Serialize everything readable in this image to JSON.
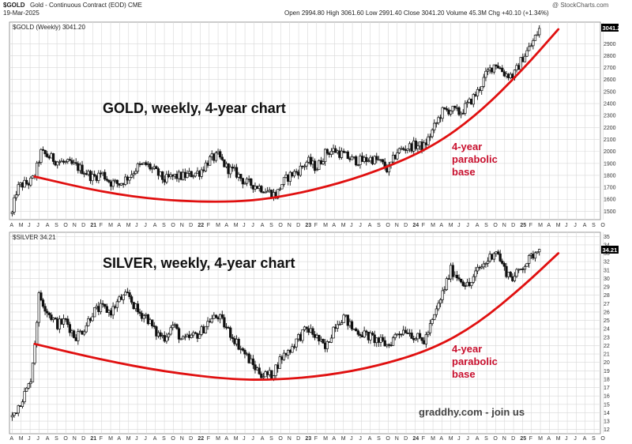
{
  "header": {
    "symbol": "$GOLD",
    "description": "Gold - Continuous Contract (EOD) CME",
    "date": "19-Mar-2025",
    "open_label": "Open",
    "open": "2994.80",
    "high_label": "High",
    "high": "3061.60",
    "low_label": "Low",
    "low": "2991.40",
    "close_label": "Close",
    "close": "3041.20",
    "volume_label": "Volume",
    "volume": "45.3M",
    "chg_label": "Chg",
    "chg": "+40.10 (+1.34%)",
    "brand": "@ StockCharts.com"
  },
  "colors": {
    "candle": "#111111",
    "curve": "#e01010",
    "annotation": "#c8102e",
    "grid": "#d8d8d8"
  },
  "chart_data": [
    {
      "type": "candlestick",
      "legend": "$GOLD (Weekly) 3041.20",
      "title": "GOLD, weekly, 4-year chart",
      "last_value": "3041.20",
      "annotation": [
        "4-year",
        "parabolic",
        "base"
      ],
      "y_ticks": [
        1500,
        1600,
        1700,
        1800,
        1900,
        2000,
        2100,
        2200,
        2300,
        2400,
        2500,
        2600,
        2700,
        2800,
        2900
      ],
      "ylim": [
        1430,
        3080
      ],
      "x_ticks": [
        "A",
        "M",
        "J",
        "J",
        "A",
        "S",
        "O",
        "N",
        "D",
        "21",
        "F",
        "M",
        "A",
        "M",
        "J",
        "J",
        "A",
        "S",
        "O",
        "N",
        "D",
        "22",
        "F",
        "M",
        "A",
        "M",
        "J",
        "J",
        "A",
        "S",
        "O",
        "N",
        "D",
        "23",
        "F",
        "M",
        "A",
        "M",
        "J",
        "J",
        "A",
        "S",
        "O",
        "N",
        "D",
        "24",
        "F",
        "M",
        "A",
        "M",
        "J",
        "J",
        "A",
        "S",
        "O",
        "N",
        "D",
        "25",
        "F",
        "M",
        "A",
        "M",
        "J",
        "J",
        "A",
        "S",
        "O"
      ],
      "x_tick_bold": [
        "21",
        "22",
        "23",
        "24",
        "25"
      ],
      "series_anchors": [
        {
          "month": 0,
          "value": 1480
        },
        {
          "month": 0.5,
          "value": 1680
        },
        {
          "month": 1,
          "value": 1720
        },
        {
          "month": 2,
          "value": 1740
        },
        {
          "month": 2.5,
          "value": 1790
        },
        {
          "month": 3.2,
          "value": 1990
        },
        {
          "month": 4,
          "value": 1960
        },
        {
          "month": 5,
          "value": 1920
        },
        {
          "month": 6,
          "value": 1900
        },
        {
          "month": 7,
          "value": 1880
        },
        {
          "month": 8,
          "value": 1840
        },
        {
          "month": 9,
          "value": 1780
        },
        {
          "month": 10,
          "value": 1820
        },
        {
          "month": 11,
          "value": 1740
        },
        {
          "month": 12,
          "value": 1730
        },
        {
          "month": 13,
          "value": 1790
        },
        {
          "month": 14,
          "value": 1870
        },
        {
          "month": 15,
          "value": 1890
        },
        {
          "month": 16,
          "value": 1830
        },
        {
          "month": 17,
          "value": 1760
        },
        {
          "month": 18,
          "value": 1790
        },
        {
          "month": 19,
          "value": 1790
        },
        {
          "month": 20,
          "value": 1810
        },
        {
          "month": 21,
          "value": 1830
        },
        {
          "month": 22,
          "value": 1930
        },
        {
          "month": 23,
          "value": 1960
        },
        {
          "month": 24,
          "value": 1860
        },
        {
          "month": 25,
          "value": 1820
        },
        {
          "month": 26,
          "value": 1740
        },
        {
          "month": 27,
          "value": 1720
        },
        {
          "month": 28,
          "value": 1690
        },
        {
          "month": 29,
          "value": 1650
        },
        {
          "month": 29.5,
          "value": 1630
        },
        {
          "month": 30,
          "value": 1720
        },
        {
          "month": 31,
          "value": 1800
        },
        {
          "month": 32,
          "value": 1840
        },
        {
          "month": 33,
          "value": 1920
        },
        {
          "month": 34,
          "value": 1860
        },
        {
          "month": 35,
          "value": 1990
        },
        {
          "month": 36,
          "value": 2010
        },
        {
          "month": 37,
          "value": 1970
        },
        {
          "month": 38,
          "value": 1930
        },
        {
          "month": 39,
          "value": 1920
        },
        {
          "month": 40,
          "value": 1940
        },
        {
          "month": 41,
          "value": 1920
        },
        {
          "month": 42,
          "value": 1840
        },
        {
          "month": 43,
          "value": 2000
        },
        {
          "month": 44,
          "value": 2030
        },
        {
          "month": 45,
          "value": 2050
        },
        {
          "month": 46,
          "value": 2040
        },
        {
          "month": 47,
          "value": 2180
        },
        {
          "month": 48,
          "value": 2330
        },
        {
          "month": 49,
          "value": 2350
        },
        {
          "month": 50,
          "value": 2320
        },
        {
          "month": 51,
          "value": 2400
        },
        {
          "month": 52,
          "value": 2500
        },
        {
          "month": 53,
          "value": 2650
        },
        {
          "month": 54,
          "value": 2740
        },
        {
          "month": 55,
          "value": 2650
        },
        {
          "month": 56,
          "value": 2630
        },
        {
          "month": 57,
          "value": 2780
        },
        {
          "month": 58,
          "value": 2890
        },
        {
          "month": 59,
          "value": 3040
        }
      ],
      "curve": [
        {
          "month": 2.5,
          "value": 1790
        },
        {
          "month": 10,
          "value": 1660
        },
        {
          "month": 17,
          "value": 1590
        },
        {
          "month": 24,
          "value": 1575
        },
        {
          "month": 29,
          "value": 1605
        },
        {
          "month": 35,
          "value": 1700
        },
        {
          "month": 41,
          "value": 1840
        },
        {
          "month": 47,
          "value": 2040
        },
        {
          "month": 52,
          "value": 2310
        },
        {
          "month": 57,
          "value": 2680
        },
        {
          "month": 61,
          "value": 3020
        }
      ]
    },
    {
      "type": "candlestick",
      "legend": "$SILVER 34.21",
      "title": "SILVER, weekly, 4-year chart",
      "last_value": "34.21",
      "annotation": [
        "4-year",
        "parabolic",
        "base"
      ],
      "watermark": "graddhy.com - join us",
      "y_ticks": [
        12,
        13,
        14,
        15,
        16,
        17,
        18,
        19,
        20,
        21,
        22,
        23,
        24,
        25,
        26,
        27,
        28,
        29,
        30,
        31,
        32,
        33,
        34,
        35
      ],
      "ylim": [
        11.5,
        35.5
      ],
      "x_ticks": [
        "A",
        "M",
        "J",
        "J",
        "A",
        "S",
        "O",
        "N",
        "D",
        "21",
        "F",
        "M",
        "A",
        "M",
        "J",
        "J",
        "A",
        "S",
        "O",
        "N",
        "D",
        "22",
        "F",
        "M",
        "A",
        "M",
        "J",
        "J",
        "A",
        "S",
        "O",
        "N",
        "D",
        "23",
        "F",
        "M",
        "A",
        "M",
        "J",
        "J",
        "A",
        "S",
        "O",
        "N",
        "D",
        "24",
        "F",
        "M",
        "A",
        "M",
        "J",
        "J",
        "A",
        "S",
        "O",
        "N",
        "D",
        "25",
        "F",
        "M",
        "A",
        "M",
        "J",
        "J",
        "A",
        "S",
        "O"
      ],
      "x_tick_bold": [
        "21",
        "22",
        "23",
        "24",
        "25"
      ],
      "series_anchors": [
        {
          "month": 0,
          "value": 13.5
        },
        {
          "month": 1,
          "value": 15.5
        },
        {
          "month": 2,
          "value": 17.5
        },
        {
          "month": 2.5,
          "value": 22
        },
        {
          "month": 3,
          "value": 28
        },
        {
          "month": 4,
          "value": 26
        },
        {
          "month": 5,
          "value": 24.5
        },
        {
          "month": 6,
          "value": 25
        },
        {
          "month": 7,
          "value": 23
        },
        {
          "month": 8,
          "value": 24
        },
        {
          "month": 9,
          "value": 26
        },
        {
          "month": 10,
          "value": 26.5
        },
        {
          "month": 11,
          "value": 26
        },
        {
          "month": 12,
          "value": 27.5
        },
        {
          "month": 13,
          "value": 28
        },
        {
          "month": 14,
          "value": 26
        },
        {
          "month": 15,
          "value": 25.5
        },
        {
          "month": 16,
          "value": 23.5
        },
        {
          "month": 17,
          "value": 23
        },
        {
          "month": 18,
          "value": 24.5
        },
        {
          "month": 19,
          "value": 22.5
        },
        {
          "month": 20,
          "value": 23
        },
        {
          "month": 21,
          "value": 23.5
        },
        {
          "month": 22,
          "value": 25
        },
        {
          "month": 23,
          "value": 25.5
        },
        {
          "month": 24,
          "value": 24
        },
        {
          "month": 25,
          "value": 22.5
        },
        {
          "month": 26,
          "value": 21
        },
        {
          "month": 27,
          "value": 19.5
        },
        {
          "month": 28,
          "value": 18.5
        },
        {
          "month": 29,
          "value": 18.5
        },
        {
          "month": 30,
          "value": 20.5
        },
        {
          "month": 31,
          "value": 21.5
        },
        {
          "month": 32,
          "value": 23
        },
        {
          "month": 33,
          "value": 24
        },
        {
          "month": 34,
          "value": 23
        },
        {
          "month": 35,
          "value": 21.5
        },
        {
          "month": 36,
          "value": 24.5
        },
        {
          "month": 37,
          "value": 25.5
        },
        {
          "month": 38,
          "value": 24
        },
        {
          "month": 39,
          "value": 23.5
        },
        {
          "month": 40,
          "value": 23
        },
        {
          "month": 41,
          "value": 22.5
        },
        {
          "month": 42,
          "value": 22
        },
        {
          "month": 43,
          "value": 23.5
        },
        {
          "month": 44,
          "value": 24
        },
        {
          "month": 45,
          "value": 23
        },
        {
          "month": 46,
          "value": 22.5
        },
        {
          "month": 47,
          "value": 25
        },
        {
          "month": 48,
          "value": 28
        },
        {
          "month": 49,
          "value": 31
        },
        {
          "month": 50,
          "value": 30
        },
        {
          "month": 51,
          "value": 29
        },
        {
          "month": 52,
          "value": 31
        },
        {
          "month": 53,
          "value": 32
        },
        {
          "month": 54,
          "value": 33.5
        },
        {
          "month": 55,
          "value": 31
        },
        {
          "month": 56,
          "value": 30
        },
        {
          "month": 57,
          "value": 31.5
        },
        {
          "month": 58,
          "value": 32.5
        },
        {
          "month": 59,
          "value": 34.2
        }
      ],
      "curve": [
        {
          "month": 2.5,
          "value": 22.2
        },
        {
          "month": 10,
          "value": 20.3
        },
        {
          "month": 17,
          "value": 18.9
        },
        {
          "month": 24,
          "value": 18.0
        },
        {
          "month": 29,
          "value": 17.9
        },
        {
          "month": 35,
          "value": 18.4
        },
        {
          "month": 41,
          "value": 19.6
        },
        {
          "month": 47,
          "value": 21.6
        },
        {
          "month": 52,
          "value": 24.6
        },
        {
          "month": 57,
          "value": 29.0
        },
        {
          "month": 61,
          "value": 33.0
        }
      ]
    }
  ]
}
